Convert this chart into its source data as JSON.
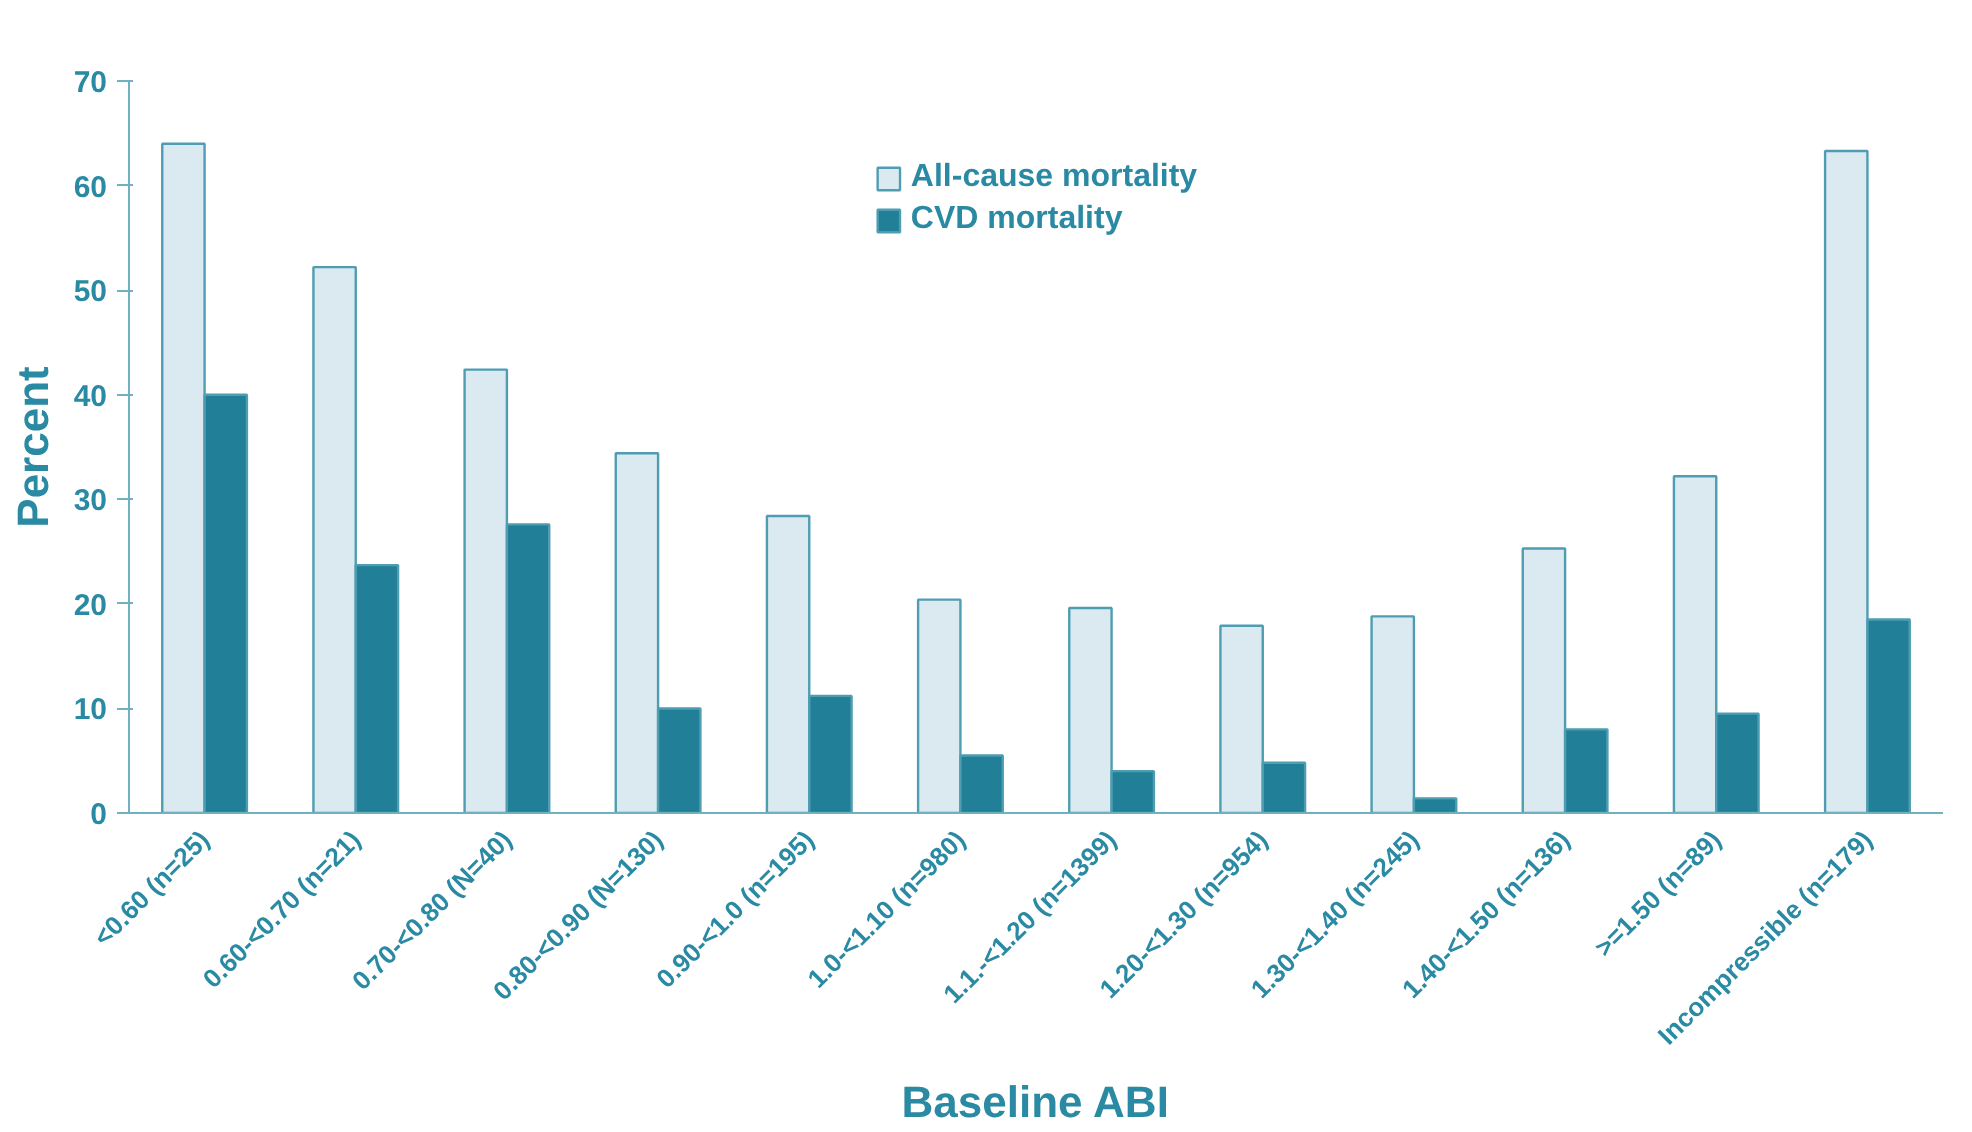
{
  "chart_data": {
    "type": "bar",
    "xlabel": "Baseline ABI",
    "ylabel": "Percent",
    "categories": [
      "<0.60 (n=25)",
      "0.60-<0.70 (n=21)",
      "0.70-<0.80 (N=40)",
      "0.80-<0.90 (N=130)",
      "0.90-<1.0 (n=195)",
      "1.0-<1.10 (n=980)",
      "1.1.-<1.20 (n=1399)",
      "1.20-<1.30 (n=954)",
      "1.30-<1.40 (n=245)",
      "1.40-<1.50 (n=136)",
      ">=1.50 (n=89)",
      "Incompressible (n=179)"
    ],
    "series": [
      {
        "name": "All-cause mortality",
        "color": "#dbeaf0",
        "values": [
          64,
          52.2,
          42.4,
          34.4,
          28.4,
          20.4,
          19.6,
          17.9,
          18.8,
          25.3,
          32.2,
          63.3
        ]
      },
      {
        "name": "CVD mortality",
        "color": "#217f97",
        "values": [
          40,
          23.7,
          27.6,
          10,
          11.2,
          5.5,
          4,
          4.8,
          1.4,
          8,
          9.5,
          18.5
        ]
      }
    ],
    "ylim": [
      0,
      70
    ],
    "yticks": [
      0,
      10,
      20,
      30,
      40,
      50,
      60,
      70
    ],
    "grid": false,
    "legend": "top center"
  }
}
